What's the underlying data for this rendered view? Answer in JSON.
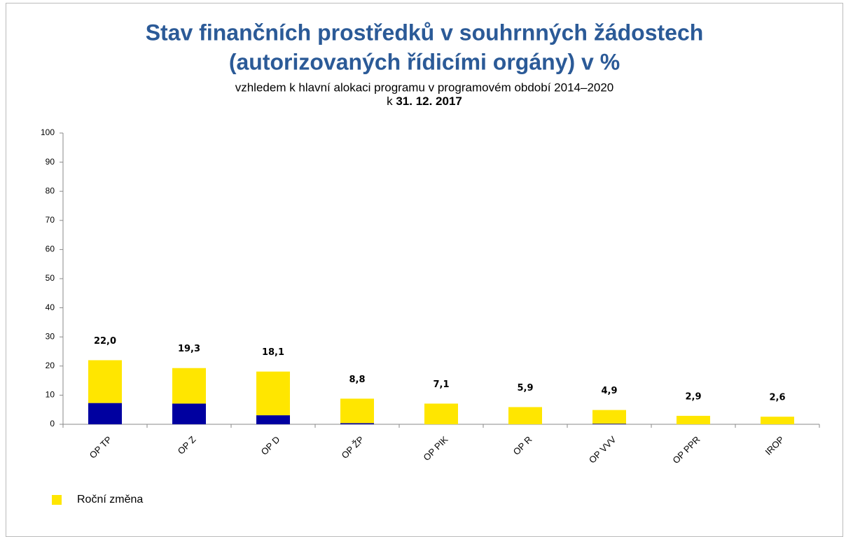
{
  "chart_data": {
    "type": "stacked_bar",
    "title": [
      "Stav finančních prostředků v souhrnných žádostech",
      "(autorizovaných řídicími orgány) v %"
    ],
    "subtitle": "vzhledem k hlavní alokaci programu v programovém období 2014–2020",
    "date_prefix": "k",
    "date": "31. 12. 2017",
    "categories": [
      "OP TP",
      "OP Z",
      "OP D",
      "OP ŽP",
      "OP PIK",
      "OP R",
      "OP VVV",
      "OP PPR",
      "IROP"
    ],
    "series": [
      {
        "color": "#0000a0",
        "values": [
          7.3,
          7.1,
          3.1,
          0.4,
          0,
          0,
          0.2,
          0,
          0
        ]
      },
      {
        "name": "Roční změna",
        "color": "#ffe600",
        "values": [
          14.7,
          12.2,
          15.0,
          8.4,
          7.1,
          5.9,
          4.7,
          2.9,
          2.6
        ]
      }
    ],
    "totals": [
      22.0,
      19.3,
      18.1,
      8.8,
      7.1,
      5.9,
      4.9,
      2.9,
      2.6
    ],
    "total_labels": [
      "22,0",
      "19,3",
      "18,1",
      "8,8",
      "7,1",
      "5,9",
      "4,9",
      "2,9",
      "2,6"
    ],
    "ylim": [
      0,
      100
    ],
    "yticks": [
      0,
      10,
      20,
      30,
      40,
      50,
      60,
      70,
      80,
      90,
      100
    ],
    "legend": "bottom-left"
  }
}
